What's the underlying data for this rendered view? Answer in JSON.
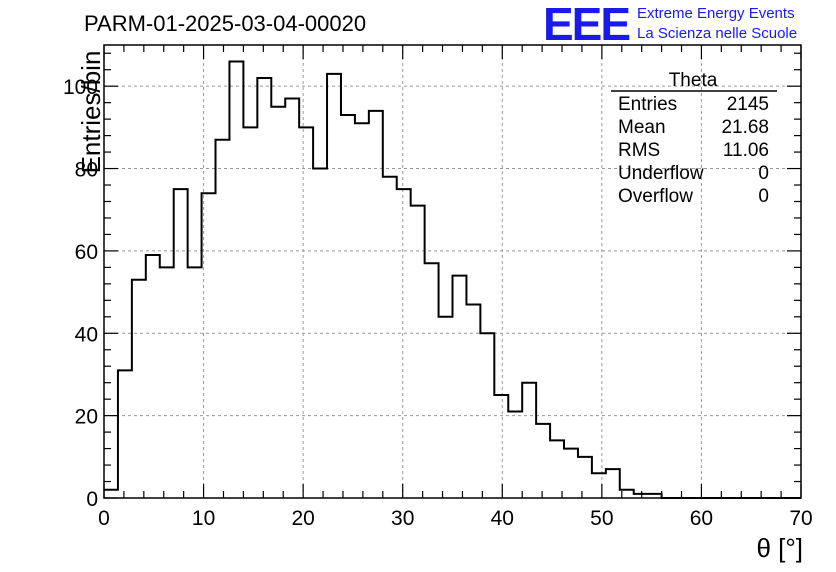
{
  "chart_data": {
    "type": "histogram",
    "title": "PARM-01-2025-03-04-00020",
    "xlabel": "θ [°]",
    "ylabel": "Entries/bin",
    "xlim": [
      0,
      70
    ],
    "ylim": [
      0,
      110
    ],
    "bin_width": 1.4,
    "grid": true,
    "x_ticks": [
      0,
      10,
      20,
      30,
      40,
      50,
      60,
      70
    ],
    "y_ticks": [
      0,
      20,
      40,
      60,
      80,
      100
    ],
    "x_tick_labels": [
      "0",
      "10",
      "20",
      "30",
      "40",
      "50",
      "60",
      "70"
    ],
    "y_tick_labels": [
      "0",
      "20",
      "40",
      "60",
      "80",
      "100"
    ],
    "values": [
      2,
      31,
      53,
      59,
      56,
      75,
      56,
      74,
      87,
      106,
      90,
      102,
      95,
      97,
      90,
      80,
      103,
      93,
      91,
      94,
      78,
      75,
      71,
      57,
      44,
      54,
      47,
      40,
      25,
      21,
      28,
      18,
      14,
      12,
      10,
      6,
      7,
      2,
      1,
      1,
      0,
      0,
      0,
      0,
      0,
      0,
      0,
      0,
      0,
      0
    ],
    "stats_box": {
      "title": "Theta",
      "rows": [
        {
          "label": "Entries",
          "value": "2145"
        },
        {
          "label": "Mean",
          "value": "21.68"
        },
        {
          "label": "RMS",
          "value": "11.06"
        },
        {
          "label": "Underflow",
          "value": "0"
        },
        {
          "label": "Overflow",
          "value": "0"
        }
      ]
    }
  },
  "logo": {
    "text": "EEE",
    "line1": "Extreme Energy Events",
    "line2": "La Scienza nelle Scuole"
  },
  "colors": {
    "histogram": "#000000",
    "grid": "#999999",
    "logo": "#1a1aee"
  }
}
